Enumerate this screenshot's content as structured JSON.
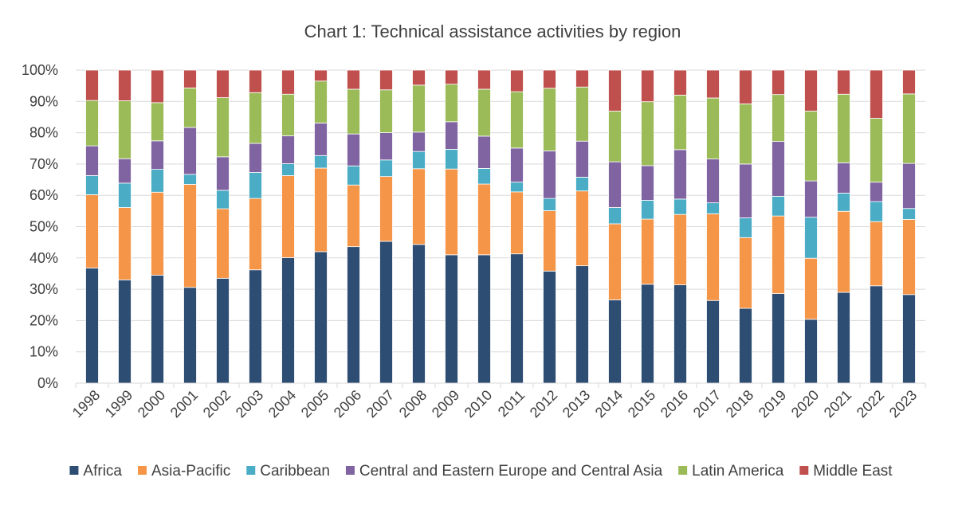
{
  "chart_data": {
    "type": "bar",
    "stacked": true,
    "title": "Chart 1: Technical assistance activities by region",
    "xlabel": "",
    "ylabel": "",
    "ylim": [
      0,
      100
    ],
    "y_ticks": [
      0,
      10,
      20,
      30,
      40,
      50,
      60,
      70,
      80,
      90,
      100
    ],
    "y_tick_labels": [
      "0%",
      "10%",
      "20%",
      "30%",
      "40%",
      "50%",
      "60%",
      "70%",
      "80%",
      "90%",
      "100%"
    ],
    "grid": true,
    "legend_position": "bottom",
    "categories": [
      "1998",
      "1999",
      "2000",
      "2001",
      "2002",
      "2003",
      "2004",
      "2005",
      "2006",
      "2007",
      "2008",
      "2009",
      "2010",
      "2011",
      "2012",
      "2013",
      "2014",
      "2015",
      "2016",
      "2017",
      "2018",
      "2019",
      "2020",
      "2021",
      "2022",
      "2023"
    ],
    "series": [
      {
        "name": "Africa",
        "color": "#2e4d73",
        "values": [
          36.8,
          33.0,
          34.5,
          30.6,
          33.5,
          36.2,
          40.1,
          42.0,
          43.6,
          45.3,
          44.3,
          41.0,
          41.0,
          41.3,
          35.8,
          37.5,
          26.6,
          31.6,
          31.4,
          26.4,
          23.9,
          28.6,
          20.4,
          29.0,
          31.1,
          28.3
        ]
      },
      {
        "name": "Asia-Pacific",
        "color": "#f59547",
        "values": [
          23.4,
          23.1,
          26.5,
          32.9,
          22.2,
          22.8,
          26.2,
          26.7,
          19.7,
          20.7,
          24.2,
          27.4,
          22.6,
          19.8,
          19.3,
          23.9,
          24.3,
          20.8,
          22.5,
          27.7,
          22.6,
          24.8,
          19.5,
          25.9,
          20.5,
          24.0
        ]
      },
      {
        "name": "Caribbean",
        "color": "#4aacc5",
        "values": [
          6.1,
          7.8,
          7.3,
          3.2,
          5.9,
          8.3,
          3.8,
          4.0,
          6.1,
          5.3,
          5.5,
          6.3,
          5.0,
          3.1,
          3.9,
          4.4,
          5.2,
          6.0,
          4.9,
          3.5,
          6.3,
          6.3,
          13.1,
          5.8,
          6.4,
          3.5
        ]
      },
      {
        "name": "Central and Eastern Europe and Central Asia",
        "color": "#8064a2",
        "values": [
          9.5,
          7.8,
          9.1,
          15.0,
          10.7,
          9.3,
          8.9,
          10.4,
          10.2,
          8.7,
          6.2,
          8.8,
          10.3,
          10.9,
          15.2,
          11.5,
          14.6,
          11.1,
          15.8,
          14.0,
          17.2,
          17.5,
          11.6,
          9.7,
          6.2,
          14.4
        ]
      },
      {
        "name": "Latin America",
        "color": "#9bbb59",
        "values": [
          14.5,
          18.5,
          12.2,
          12.6,
          18.9,
          16.2,
          13.3,
          13.4,
          14.3,
          13.7,
          15.0,
          12.0,
          15.0,
          18.0,
          20.0,
          17.3,
          16.2,
          20.4,
          17.4,
          19.5,
          19.2,
          15.0,
          22.3,
          21.9,
          20.4,
          22.2
        ]
      },
      {
        "name": "Middle East",
        "color": "#c0504d",
        "values": [
          9.7,
          9.8,
          10.4,
          5.7,
          8.8,
          7.2,
          7.7,
          3.5,
          6.1,
          6.3,
          4.8,
          4.5,
          6.1,
          6.9,
          5.8,
          5.4,
          13.1,
          10.1,
          8.0,
          8.9,
          10.8,
          7.8,
          13.1,
          7.6,
          15.4,
          7.6
        ]
      }
    ]
  }
}
